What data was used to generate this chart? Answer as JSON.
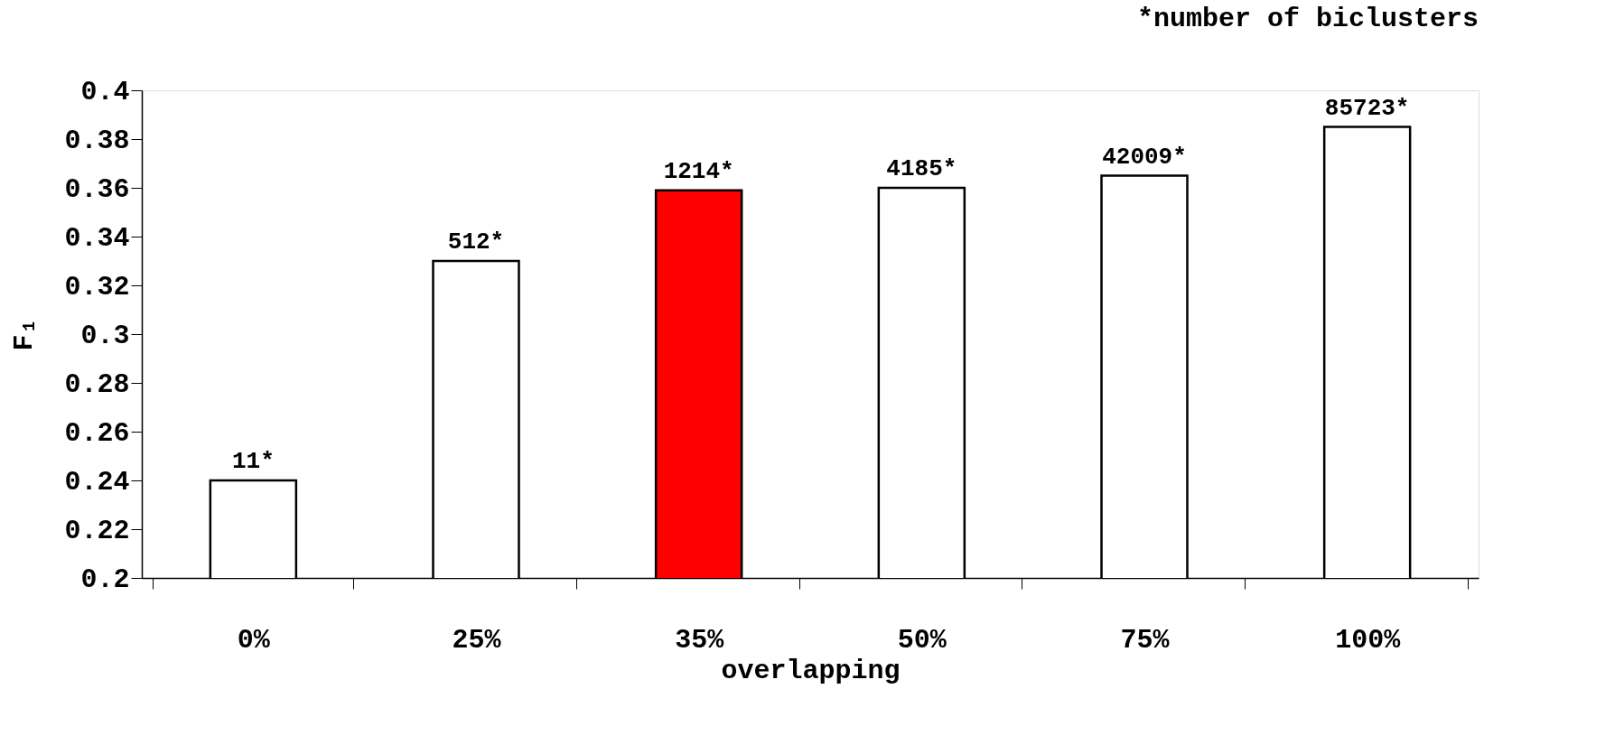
{
  "chart_data": {
    "type": "bar",
    "categories": [
      "0%",
      "25%",
      "35%",
      "50%",
      "75%",
      "100%"
    ],
    "values": [
      0.24,
      0.33,
      0.359,
      0.36,
      0.365,
      0.385
    ],
    "colors": [
      "#ffffff",
      "#ffffff",
      "#ff0000",
      "#ffffff",
      "#ffffff",
      "#ffffff"
    ],
    "xlabel": "overlapping",
    "ylabel": "F₁",
    "ylim": [
      0.2,
      0.4
    ],
    "yticks": [
      0.2,
      0.22,
      0.24,
      0.26,
      0.28,
      0.3,
      0.32,
      0.34,
      0.36,
      0.38,
      0.4
    ],
    "annotations": [
      "*number of biclusters",
      {
        "text": "11*",
        "x": "0%",
        "y": 0.24
      },
      {
        "text": "512*",
        "x": "25%",
        "y": 0.33
      },
      {
        "text": "1214*",
        "x": "35%",
        "y": 0.359
      },
      {
        "text": "4185*",
        "x": "50%",
        "y": 0.36
      },
      {
        "text": "42009*",
        "x": "75%",
        "y": 0.365
      },
      {
        "text": "85723*",
        "x": "100%",
        "y": 0.385
      }
    ],
    "grid": false
  }
}
